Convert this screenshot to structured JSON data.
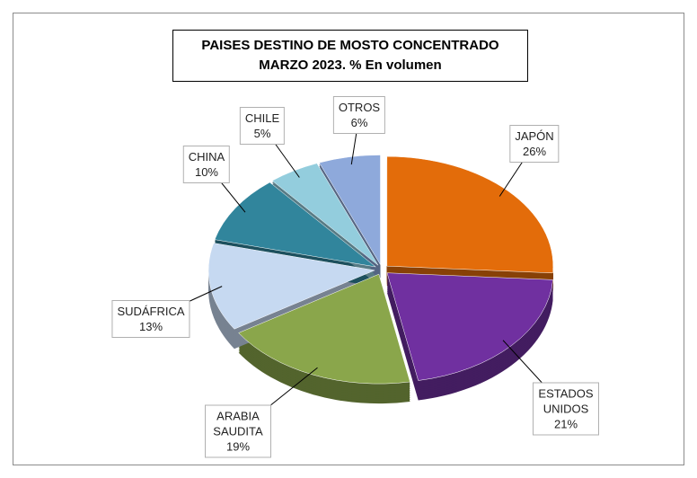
{
  "chart_data": {
    "type": "pie",
    "title": [
      "PAISES DESTINO DE MOSTO CONCENTRADO",
      "MARZO 2023. % En volumen"
    ],
    "categories": [
      "JAPÓN",
      "ESTADOS UNIDOS",
      "ARABIA SAUDITA",
      "SUDÁFRICA",
      "CHINA",
      "CHILE",
      "OTROS"
    ],
    "values": [
      26,
      21,
      19,
      13,
      10,
      5,
      6
    ],
    "value_labels": [
      "26%",
      "21%",
      "19%",
      "13%",
      "10%",
      "5%",
      "6%"
    ],
    "colors": [
      "#e36c0a",
      "#7030a0",
      "#8aa64b",
      "#c6d9f1",
      "#31859c",
      "#93cddd",
      "#8ea9db"
    ]
  }
}
